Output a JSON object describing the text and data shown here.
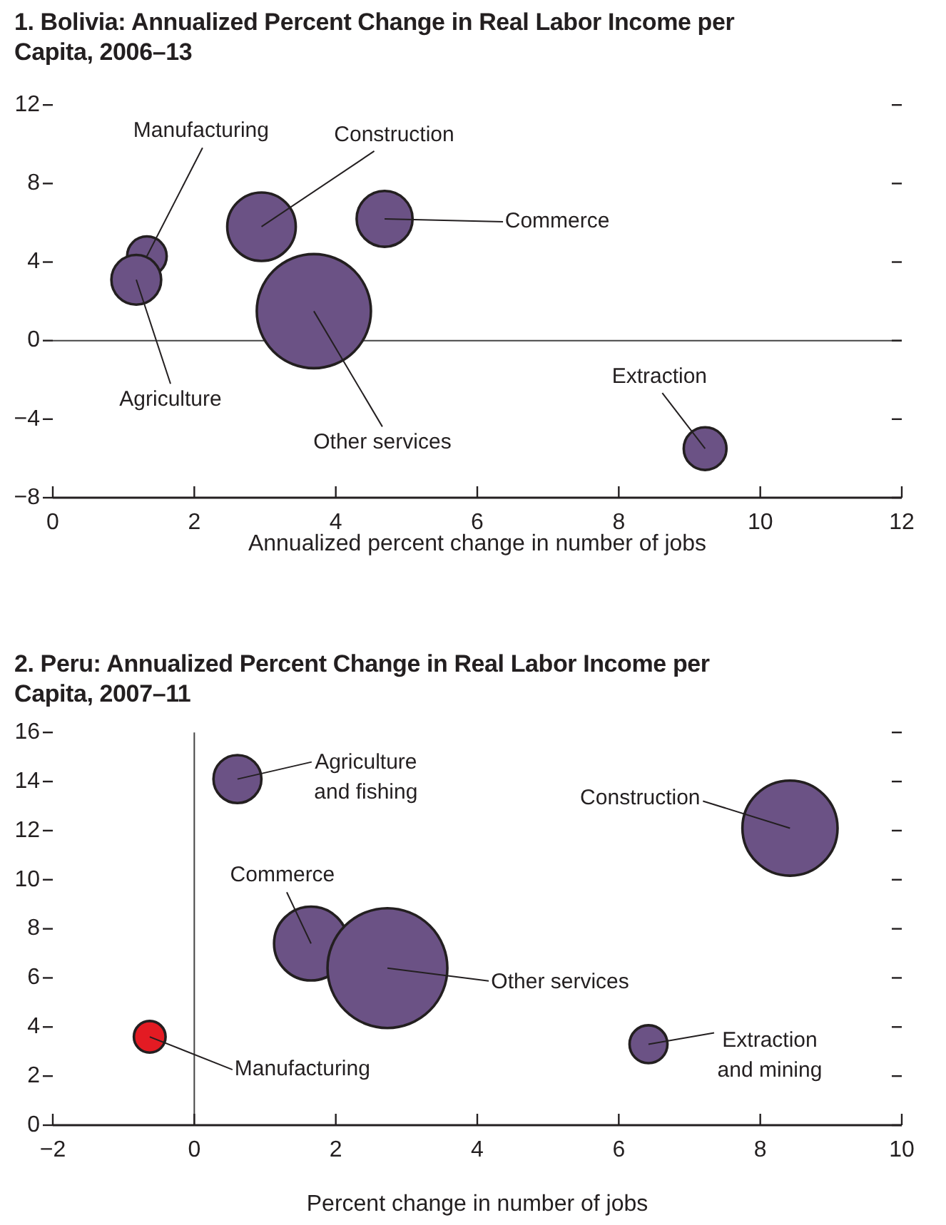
{
  "chart_data": [
    {
      "type": "bubble",
      "title": "1. Bolivia: Annualized Percent Change in Real Labor Income per Capita, 2006–13",
      "xlabel": "Annualized percent change in number of jobs",
      "xlim": [
        0,
        12
      ],
      "xticks": [
        0,
        2,
        4,
        6,
        8,
        10,
        12
      ],
      "ylim": [
        -8,
        12
      ],
      "yticks": [
        -8,
        -4,
        0,
        4,
        8,
        12
      ],
      "grid": false,
      "ref_lines": [
        {
          "axis": "y",
          "value": 0
        }
      ],
      "x": [
        1.18,
        1.33,
        2.95,
        4.69,
        3.69,
        9.22
      ],
      "values": [
        3.1,
        4.3,
        5.8,
        6.2,
        1.5,
        -5.5
      ],
      "sizes": [
        0.19,
        0.12,
        0.36,
        0.24,
        1,
        0.14
      ],
      "colors": [
        "#6b5285",
        "#6b5285",
        "#6b5285",
        "#6b5285",
        "#6b5285",
        "#6b5285"
      ],
      "annotations": [
        {
          "text": "Agriculture",
          "x": 1.18,
          "y": 3.1
        },
        {
          "text": "Manufacturing",
          "x": 1.33,
          "y": 4.3
        },
        {
          "text": "Construction",
          "x": 2.95,
          "y": 5.8
        },
        {
          "text": "Commerce",
          "x": 4.69,
          "y": 6.2
        },
        {
          "text": "Other services",
          "x": 3.69,
          "y": 1.5
        },
        {
          "text": "Extraction",
          "x": 9.22,
          "y": -5.5
        }
      ]
    },
    {
      "type": "bubble",
      "title": "2. Peru: Annualized Percent Change in Real Labor Income per Capita, 2007–11",
      "xlabel": "Percent change in number of jobs",
      "xlim": [
        -2,
        10
      ],
      "xticks": [
        -2,
        0,
        2,
        4,
        6,
        8,
        10
      ],
      "ylim": [
        0,
        16
      ],
      "yticks": [
        0,
        2,
        4,
        6,
        8,
        10,
        12,
        14,
        16
      ],
      "grid": false,
      "ref_lines": [
        {
          "axis": "x",
          "value": 0
        }
      ],
      "x": [
        0.61,
        8.42,
        2.73,
        1.65,
        -0.63,
        6.42
      ],
      "values": [
        14.1,
        12.1,
        6.4,
        7.4,
        3.6,
        3.3
      ],
      "sizes": [
        0.16,
        0.63,
        1,
        0.38,
        0.07,
        0.1
      ],
      "colors": [
        "#6b5285",
        "#6b5285",
        "#6b5285",
        "#6b5285",
        "#e31b23",
        "#6b5285"
      ],
      "annotations": [
        {
          "text": "Agriculture and fishing",
          "x": 0.61,
          "y": 14.1
        },
        {
          "text": "Construction",
          "x": 8.42,
          "y": 12.1
        },
        {
          "text": "Other services",
          "x": 2.73,
          "y": 6.4
        },
        {
          "text": "Commerce",
          "x": 1.65,
          "y": 7.4
        },
        {
          "text": "Manufacturing",
          "x": -0.63,
          "y": 3.6
        },
        {
          "text": "Extraction and mining",
          "x": 6.42,
          "y": 3.3
        }
      ]
    }
  ]
}
